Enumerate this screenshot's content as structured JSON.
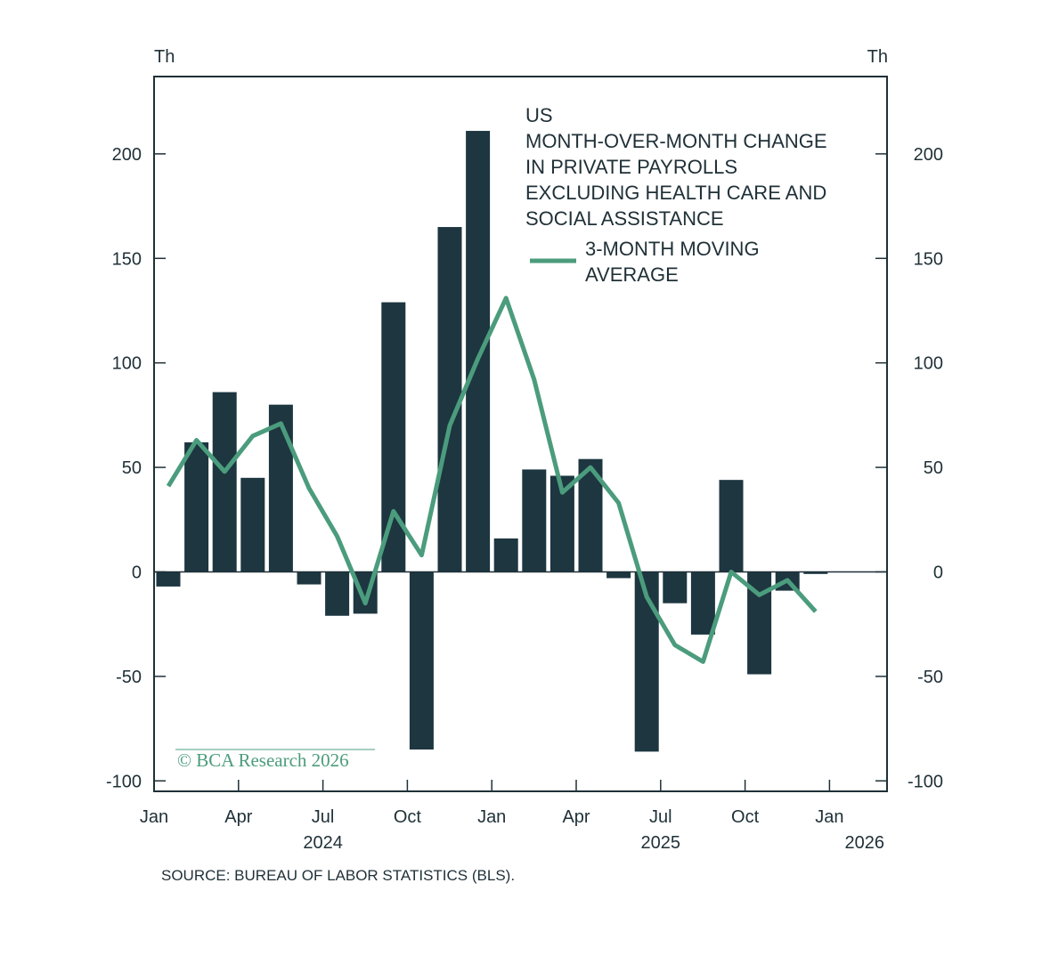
{
  "chart_data": {
    "type": "bar",
    "x": [
      "2024-01",
      "2024-02",
      "2024-03",
      "2024-04",
      "2024-05",
      "2024-06",
      "2024-07",
      "2024-08",
      "2024-09",
      "2024-10",
      "2024-11",
      "2024-12",
      "2025-01",
      "2025-02",
      "2025-03",
      "2025-04",
      "2025-05",
      "2025-06",
      "2025-07",
      "2025-08",
      "2025-09",
      "2025-10",
      "2025-11",
      "2025-12"
    ],
    "series": [
      {
        "name": "US MONTH-OVER-MONTH CHANGE IN PRIVATE PAYROLLS EXCLUDING HEALTH CARE AND SOCIAL ASSISTANCE",
        "type": "bar",
        "color": "#1d3640",
        "values": [
          -7,
          62,
          86,
          45,
          80,
          -6,
          -21,
          -20,
          129,
          -85,
          165,
          211,
          16,
          49,
          46,
          54,
          -3,
          -86,
          -15,
          -30,
          44,
          -49,
          -9,
          -1
        ]
      },
      {
        "name": "3-MONTH MOVING AVERAGE",
        "type": "line",
        "color": "#4b9c7d",
        "values": [
          41,
          63,
          48,
          65,
          71,
          40,
          17,
          -15,
          29,
          8,
          70,
          102,
          131,
          92,
          38,
          50,
          33,
          -12,
          -35,
          -43,
          0,
          -11,
          -4,
          -19
        ]
      }
    ],
    "legend_title": "US",
    "legend_entries": [
      "MONTH-OVER-MONTH CHANGE",
      "IN PRIVATE PAYROLLS",
      "EXCLUDING HEALTH CARE AND",
      "SOCIAL ASSISTANCE"
    ],
    "line_label": [
      "3-MONTH MOVING",
      "AVERAGE"
    ],
    "unit_left": "Th",
    "unit_right": "Th",
    "ylim": [
      -105,
      237
    ],
    "yticks": [
      200,
      150,
      100,
      50,
      0,
      -50,
      -100
    ],
    "ytick_labels": [
      "200",
      "150",
      "100",
      "50",
      "0",
      "-50",
      "-100"
    ],
    "xticks": [
      {
        "index": 0,
        "label": "Jan"
      },
      {
        "index": 3,
        "label": "Apr"
      },
      {
        "index": 6,
        "label": "Jul"
      },
      {
        "index": 9,
        "label": "Oct"
      },
      {
        "index": 12,
        "label": "Jan"
      },
      {
        "index": 15,
        "label": "Apr"
      },
      {
        "index": 18,
        "label": "Jul"
      },
      {
        "index": 21,
        "label": "Oct"
      },
      {
        "index": 24,
        "label": "Jan"
      }
    ],
    "year_labels": [
      {
        "index": 6,
        "label": "2024"
      },
      {
        "index": 18,
        "label": "2025"
      },
      {
        "index": 24,
        "label": "2026"
      }
    ],
    "legend_position": "top-right",
    "grid": false
  },
  "source": "SOURCE: BUREAU OF LABOR STATISTICS (BLS).",
  "copyright": "© BCA Research 2026",
  "colors": {
    "bar": "#1d3640",
    "line": "#4b9c7d",
    "axis": "#1f3037",
    "background": "#ffffff"
  }
}
